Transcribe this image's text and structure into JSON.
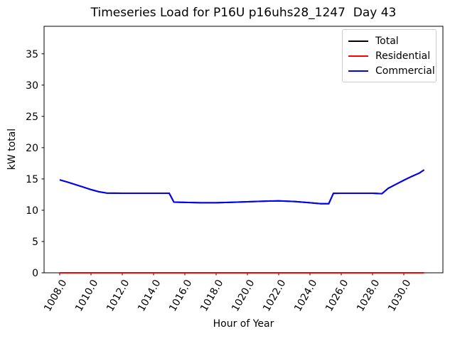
{
  "window": {
    "background_color": "#ffffff"
  },
  "chart_data": {
    "type": "line",
    "title": "Timeseries Load for P16U p16uhs28_1247  Day 43",
    "xlabel": "Hour of Year",
    "ylabel": "kW total",
    "xlim": [
      1007.0,
      1032.5
    ],
    "ylim": [
      0,
      39.4
    ],
    "xticks": [
      1008,
      1010,
      1012,
      1014,
      1016,
      1018,
      1020,
      1022,
      1024,
      1026,
      1028,
      1030
    ],
    "xtick_labels": [
      "1008.0",
      "1010.0",
      "1012.0",
      "1014.0",
      "1016.0",
      "1018.0",
      "1020.0",
      "1022.0",
      "1024.0",
      "1026.0",
      "1028.0",
      "1030.0"
    ],
    "xtick_rotation_deg": 60,
    "yticks": [
      0,
      5,
      10,
      15,
      20,
      25,
      30,
      35
    ],
    "ytick_labels": [
      "0",
      "5",
      "10",
      "15",
      "20",
      "25",
      "30",
      "35"
    ],
    "grid": false,
    "legend_position": "upper right",
    "axis_color": "#000000",
    "series": [
      {
        "name": "Total",
        "color": "#000000",
        "line_width": 2,
        "points": [
          [
            1008,
            14.85
          ],
          [
            1008.5,
            14.5
          ],
          [
            1009,
            14.1
          ],
          [
            1009.5,
            13.7
          ],
          [
            1010,
            13.3
          ],
          [
            1010.5,
            12.95
          ],
          [
            1011,
            12.75
          ],
          [
            1012,
            12.72
          ],
          [
            1013,
            12.72
          ],
          [
            1014,
            12.72
          ],
          [
            1015,
            12.72
          ],
          [
            1015.3,
            11.3
          ],
          [
            1016,
            11.25
          ],
          [
            1017,
            11.2
          ],
          [
            1018,
            11.2
          ],
          [
            1019,
            11.28
          ],
          [
            1020,
            11.35
          ],
          [
            1021,
            11.45
          ],
          [
            1022,
            11.5
          ],
          [
            1023,
            11.4
          ],
          [
            1024,
            11.2
          ],
          [
            1024.7,
            11.05
          ],
          [
            1025.2,
            11.05
          ],
          [
            1025.5,
            12.7
          ],
          [
            1026,
            12.72
          ],
          [
            1027,
            12.72
          ],
          [
            1028,
            12.72
          ],
          [
            1028.6,
            12.65
          ],
          [
            1029,
            13.5
          ],
          [
            1029.5,
            14.15
          ],
          [
            1030,
            14.8
          ],
          [
            1030.5,
            15.4
          ],
          [
            1031,
            15.95
          ],
          [
            1031.3,
            16.45
          ]
        ]
      },
      {
        "name": "Residential",
        "color": "#ff0000",
        "line_width": 2,
        "points": [
          [
            1008,
            0
          ],
          [
            1031.3,
            0
          ]
        ]
      },
      {
        "name": "Commercial",
        "color": "#0000ff",
        "line_width": 2,
        "points": [
          [
            1008,
            14.85
          ],
          [
            1008.5,
            14.5
          ],
          [
            1009,
            14.1
          ],
          [
            1009.5,
            13.7
          ],
          [
            1010,
            13.3
          ],
          [
            1010.5,
            12.95
          ],
          [
            1011,
            12.75
          ],
          [
            1012,
            12.72
          ],
          [
            1013,
            12.72
          ],
          [
            1014,
            12.72
          ],
          [
            1015,
            12.72
          ],
          [
            1015.3,
            11.3
          ],
          [
            1016,
            11.25
          ],
          [
            1017,
            11.2
          ],
          [
            1018,
            11.2
          ],
          [
            1019,
            11.28
          ],
          [
            1020,
            11.35
          ],
          [
            1021,
            11.45
          ],
          [
            1022,
            11.5
          ],
          [
            1023,
            11.4
          ],
          [
            1024,
            11.2
          ],
          [
            1024.7,
            11.05
          ],
          [
            1025.2,
            11.05
          ],
          [
            1025.5,
            12.7
          ],
          [
            1026,
            12.72
          ],
          [
            1027,
            12.72
          ],
          [
            1028,
            12.72
          ],
          [
            1028.6,
            12.65
          ],
          [
            1029,
            13.5
          ],
          [
            1029.5,
            14.15
          ],
          [
            1030,
            14.8
          ],
          [
            1030.5,
            15.4
          ],
          [
            1031,
            15.95
          ],
          [
            1031.3,
            16.45
          ]
        ]
      }
    ]
  },
  "legend": {
    "entries": [
      {
        "label": "Total",
        "color": "#000000"
      },
      {
        "label": "Residential",
        "color": "#ff0000"
      },
      {
        "label": "Commercial",
        "color": "#0000ff"
      }
    ]
  }
}
